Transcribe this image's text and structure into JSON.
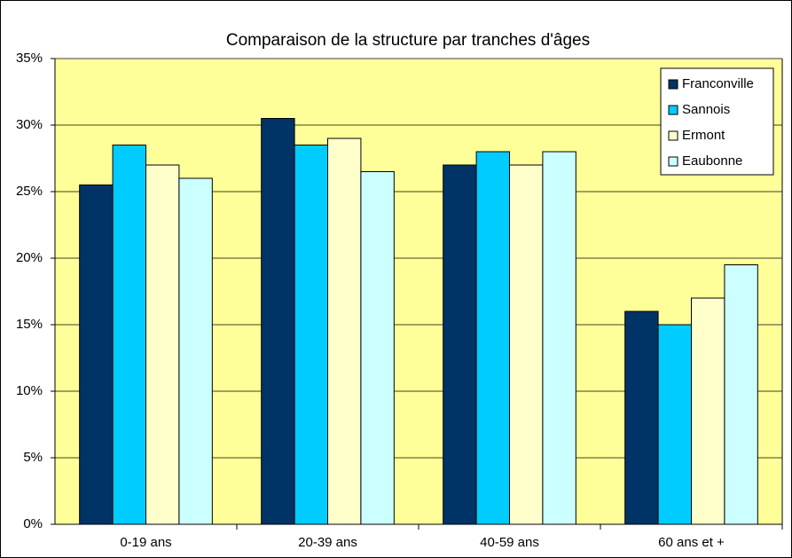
{
  "chart_data": {
    "type": "bar",
    "title": "Comparaison de la structure par tranches d'âges",
    "categories": [
      "0-19 ans",
      "20-39 ans",
      "40-59 ans",
      "60 ans et +"
    ],
    "series": [
      {
        "name": "Franconville",
        "color": "#003366",
        "values": [
          25.5,
          30.5,
          27,
          16
        ]
      },
      {
        "name": "Sannois",
        "color": "#00CCFF",
        "values": [
          28.5,
          28.5,
          28,
          15
        ]
      },
      {
        "name": "Ermont",
        "color": "#FFFFCC",
        "values": [
          27,
          29,
          27,
          17
        ]
      },
      {
        "name": "Eaubonne",
        "color": "#CCFFFF",
        "values": [
          26,
          26.5,
          28,
          19.5
        ]
      }
    ],
    "ylim": [
      0,
      35
    ],
    "yticks": [
      {
        "value": 0,
        "label": "0%"
      },
      {
        "value": 5,
        "label": "5%"
      },
      {
        "value": 10,
        "label": "10%"
      },
      {
        "value": 15,
        "label": "15%"
      },
      {
        "value": 20,
        "label": "20%"
      },
      {
        "value": 25,
        "label": "25%"
      },
      {
        "value": 30,
        "label": "30%"
      },
      {
        "value": 35,
        "label": "35%"
      }
    ],
    "grid": true,
    "plot_background": "#FFFF99",
    "legend": "top-right"
  }
}
